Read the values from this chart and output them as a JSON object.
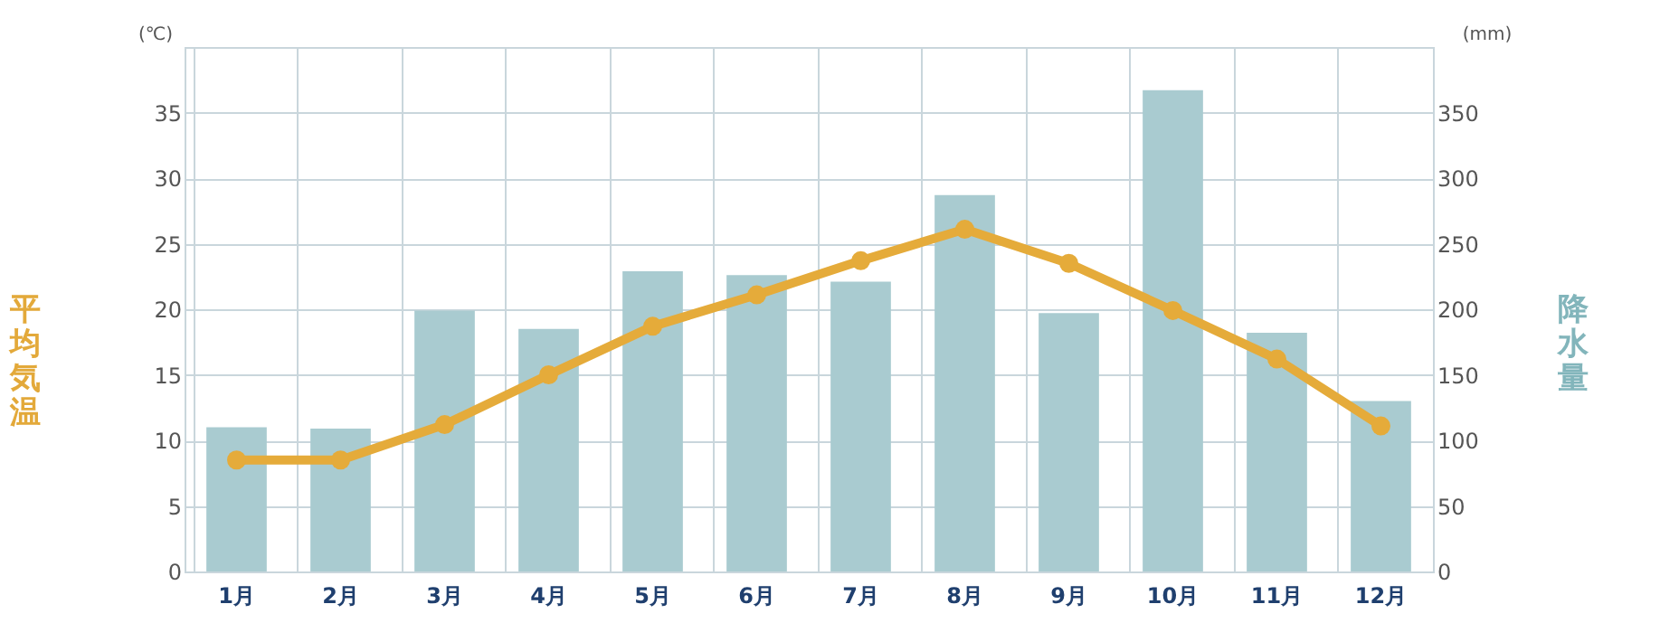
{
  "chart_data": {
    "type": "bar",
    "categories": [
      "1月",
      "2月",
      "3月",
      "4月",
      "5月",
      "6月",
      "7月",
      "8月",
      "9月",
      "10月",
      "11月",
      "12月"
    ],
    "series": [
      {
        "name": null,
        "axis": "y2",
        "color": "#a9cbd0",
        "values": [
          110,
          109,
          199,
          185,
          229,
          226,
          221,
          287,
          197,
          367,
          182,
          130
        ]
      },
      {
        "name": null,
        "type": "line",
        "axis": "y",
        "color": "#e5ab3a",
        "marker": "circle",
        "values": [
          8.5,
          8.5,
          11.2,
          15,
          18.7,
          21.1,
          23.7,
          26.1,
          23.5,
          19.9,
          16.2,
          11.1
        ]
      }
    ],
    "ylabel": "平均気温",
    "y2label": "降水量",
    "ylim": [
      0,
      40
    ],
    "yticks": [
      0,
      5,
      10,
      15,
      20,
      25,
      30,
      35
    ],
    "y2lim": [
      0,
      400
    ],
    "y2ticks": [
      0,
      50,
      100,
      150,
      200,
      250,
      300,
      350
    ],
    "annotations": [
      "(℃)",
      "(mm)"
    ],
    "grid": true
  }
}
